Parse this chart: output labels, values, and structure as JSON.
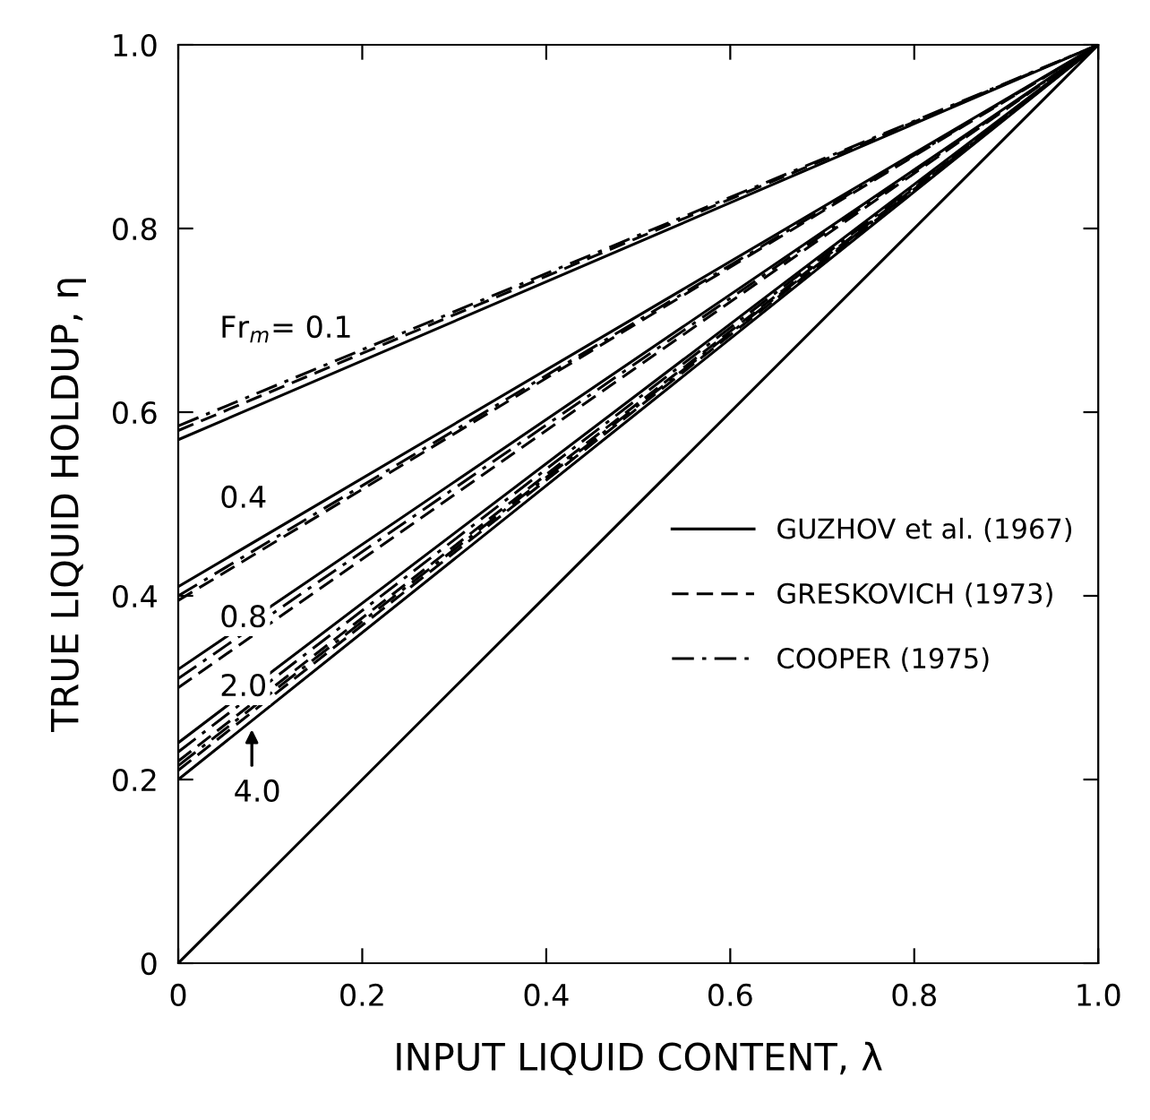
{
  "chart_data": {
    "type": "line",
    "xlabel": "INPUT LIQUID CONTENT, λ",
    "ylabel": "TRUE LIQUID HOLDUP, η",
    "x": [
      0,
      1
    ],
    "series": [
      {
        "name": "GUZHOV et al. (1967)",
        "color": "#000000",
        "line_style": "solid",
        "values": [
          0.57,
          1.0
        ]
      },
      {
        "name": "GRESKOVICH (1973)",
        "color": "#000000",
        "line_style": "dashed",
        "values": [
          0.58,
          1.0
        ]
      },
      {
        "name": "COOPER (1975)",
        "color": "#000000",
        "line_style": "dashdot",
        "values": [
          0.585,
          1.0
        ]
      },
      {
        "color": "#000000",
        "line_style": "solid",
        "values": [
          0.41,
          1.0
        ]
      },
      {
        "color": "#000000",
        "line_style": "dashed",
        "values": [
          0.395,
          1.0
        ]
      },
      {
        "color": "#000000",
        "line_style": "dashdot",
        "values": [
          0.4,
          1.0
        ]
      },
      {
        "color": "#000000",
        "line_style": "solid",
        "values": [
          0.32,
          1.0
        ]
      },
      {
        "color": "#000000",
        "line_style": "dashed",
        "values": [
          0.3,
          1.0
        ]
      },
      {
        "color": "#000000",
        "line_style": "dashdot",
        "values": [
          0.31,
          1.0
        ]
      },
      {
        "color": "#000000",
        "line_style": "solid",
        "values": [
          0.24,
          1.0
        ]
      },
      {
        "color": "#000000",
        "line_style": "dashed",
        "values": [
          0.22,
          1.0
        ]
      },
      {
        "color": "#000000",
        "line_style": "dashdot",
        "values": [
          0.23,
          1.0
        ]
      },
      {
        "color": "#000000",
        "line_style": "solid",
        "values": [
          0.2,
          1.0
        ]
      },
      {
        "color": "#000000",
        "line_style": "dashed",
        "values": [
          0.21,
          1.0
        ]
      },
      {
        "color": "#000000",
        "line_style": "dashdot",
        "values": [
          0.215,
          1.0
        ]
      },
      {
        "color": "#000000",
        "line_style": "solid",
        "values": [
          0.0,
          1.0
        ]
      }
    ],
    "annotations": [
      "Fr$_{m}$= 0.1",
      "0.4",
      "0.8",
      "2.0",
      "4.0"
    ],
    "xlim": [
      0,
      1
    ],
    "ylim": [
      0,
      1
    ],
    "xticks": [
      0,
      0.2,
      0.4,
      0.6,
      0.8,
      {
        "value": 1,
        "label": "1.0"
      }
    ],
    "yticks": [
      0,
      0.2,
      0.4,
      0.6,
      0.8,
      {
        "value": 1,
        "label": "1.0"
      }
    ],
    "grid": false,
    "legend": "right",
    "marker": "none"
  }
}
